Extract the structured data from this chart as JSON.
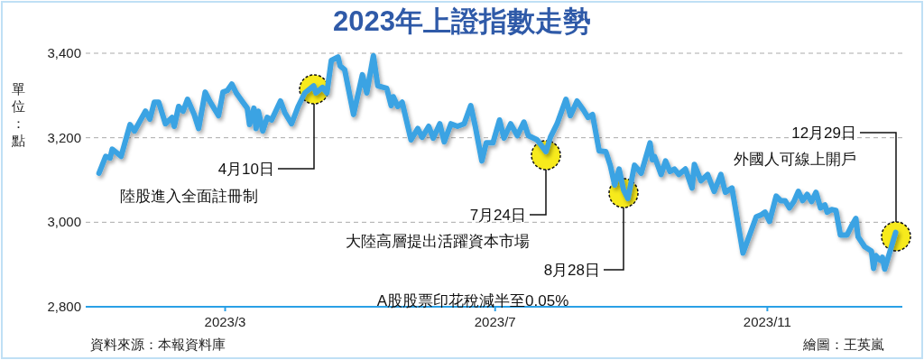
{
  "chart_data": {
    "type": "line",
    "title": "2023年上證指數走勢",
    "ylabel": "單位：點",
    "x": [
      "2023-01-03",
      "2023-01-06",
      "2023-01-08",
      "2023-01-09",
      "2023-01-13",
      "2023-01-17",
      "2023-01-19",
      "2023-01-24",
      "2023-01-26",
      "2023-01-28",
      "2023-01-30",
      "2023-02-02",
      "2023-02-05",
      "2023-02-06",
      "2023-02-08",
      "2023-02-10",
      "2023-02-12",
      "2023-02-15",
      "2023-02-17",
      "2023-02-20",
      "2023-02-22",
      "2023-02-26",
      "2023-02-28",
      "2023-03-02",
      "2023-03-04",
      "2023-03-06",
      "2023-03-09",
      "2023-03-11",
      "2023-03-12",
      "2023-03-14",
      "2023-03-15",
      "2023-03-16",
      "2023-03-18",
      "2023-03-20",
      "2023-03-22",
      "2023-03-26",
      "2023-03-28",
      "2023-03-31",
      "2023-04-03",
      "2023-04-06",
      "2023-04-10",
      "2023-04-11",
      "2023-04-14",
      "2023-04-16",
      "2023-04-18",
      "2023-04-21",
      "2023-04-22",
      "2023-04-24",
      "2023-04-28",
      "2023-05-02",
      "2023-05-04",
      "2023-05-07",
      "2023-05-09",
      "2023-05-13",
      "2023-05-15",
      "2023-05-16",
      "2023-05-18",
      "2023-05-20",
      "2023-05-24",
      "2023-05-27",
      "2023-05-29",
      "2023-06-01",
      "2023-06-03",
      "2023-06-06",
      "2023-06-08",
      "2023-06-11",
      "2023-06-14",
      "2023-06-17",
      "2023-06-20",
      "2023-06-22",
      "2023-06-25",
      "2023-06-27",
      "2023-06-30",
      "2023-07-03",
      "2023-07-05",
      "2023-07-08",
      "2023-07-11",
      "2023-07-14",
      "2023-07-16",
      "2023-07-20",
      "2023-07-24",
      "2023-07-26",
      "2023-07-29",
      "2023-08-02",
      "2023-08-04",
      "2023-08-07",
      "2023-08-10",
      "2023-08-12",
      "2023-08-14",
      "2023-08-17",
      "2023-08-20",
      "2023-08-22",
      "2023-08-24",
      "2023-08-26",
      "2023-08-28",
      "2023-08-30",
      "2023-09-02",
      "2023-09-05",
      "2023-09-09",
      "2023-09-10",
      "2023-09-11",
      "2023-09-14",
      "2023-09-16",
      "2023-09-18",
      "2023-09-20",
      "2023-09-22",
      "2023-09-25",
      "2023-09-28",
      "2023-09-29",
      "2023-10-02",
      "2023-10-05",
      "2023-10-08",
      "2023-10-11",
      "2023-10-13",
      "2023-10-16",
      "2023-10-21",
      "2023-10-27",
      "2023-10-29",
      "2023-10-31",
      "2023-11-02",
      "2023-11-05",
      "2023-11-07",
      "2023-11-09",
      "2023-11-11",
      "2023-11-13",
      "2023-11-15",
      "2023-11-17",
      "2023-11-19",
      "2023-11-21",
      "2023-11-23",
      "2023-11-25",
      "2023-11-27",
      "2023-11-28",
      "2023-11-30",
      "2023-12-02",
      "2023-12-04",
      "2023-12-07",
      "2023-12-09",
      "2023-12-11",
      "2023-12-12",
      "2023-12-15",
      "2023-12-18",
      "2023-12-19",
      "2023-12-20",
      "2023-12-22",
      "2023-12-23",
      "2023-12-24",
      "2023-12-29"
    ],
    "series": [
      {
        "color": "#3ba3e3",
        "values": [
          3116,
          3156,
          3152,
          3173,
          3156,
          3231,
          3216,
          3263,
          3244,
          3284,
          3284,
          3233,
          3248,
          3227,
          3274,
          3263,
          3291,
          3255,
          3222,
          3308,
          3287,
          3252,
          3308,
          3312,
          3327,
          3306,
          3284,
          3270,
          3231,
          3270,
          3222,
          3263,
          3216,
          3248,
          3242,
          3287,
          3259,
          3233,
          3274,
          3306,
          3323,
          3306,
          3319,
          3306,
          3383,
          3391,
          3370,
          3361,
          3255,
          3349,
          3306,
          3394,
          3323,
          3317,
          3276,
          3297,
          3274,
          3284,
          3195,
          3222,
          3201,
          3227,
          3199,
          3233,
          3190,
          3233,
          3227,
          3233,
          3276,
          3227,
          3145,
          3188,
          3188,
          3242,
          3199,
          3233,
          3205,
          3237,
          3205,
          3195,
          3167,
          3201,
          3233,
          3291,
          3252,
          3287,
          3265,
          3248,
          3255,
          3169,
          3167,
          3135,
          3088,
          3126,
          3077,
          3056,
          3135,
          3116,
          3188,
          3148,
          3156,
          3113,
          3145,
          3120,
          3126,
          3113,
          3126,
          3081,
          3137,
          3098,
          3113,
          3073,
          3113,
          3071,
          3081,
          2927,
          3013,
          3017,
          3024,
          3002,
          3062,
          3051,
          3051,
          3034,
          3049,
          3073,
          3051,
          3066,
          3049,
          3071,
          3034,
          3041,
          3024,
          3030,
          3028,
          2970,
          2970,
          2991,
          3009,
          2966,
          2942,
          2932,
          2891,
          2921,
          2910,
          2917,
          2889,
          2976
        ]
      }
    ],
    "xlim": [
      "2022-12-28",
      "2024-01-01"
    ],
    "xticks": [
      {
        "value": "2023-03-01",
        "label": "2023/3"
      },
      {
        "value": "2023-07-01",
        "label": "2023/7"
      },
      {
        "value": "2023-11-01",
        "label": "2023/11"
      }
    ],
    "ylim": [
      2800,
      3400
    ],
    "yticks": [
      {
        "value": 2800,
        "label": "2,800"
      },
      {
        "value": 3000,
        "label": "3,000"
      },
      {
        "value": 3200,
        "label": "3,200"
      },
      {
        "value": 3400,
        "label": "3,400"
      }
    ],
    "grid": "y",
    "marker": "none",
    "line_style": "solid",
    "annotations": [
      "4月10日",
      "7月24日",
      "8月28日",
      "12月29日",
      "陸股進入全面註冊制",
      "大陸高層提出活躍資本市場",
      "A股股票印花稅減半至0.05%",
      "外國人可線上開戶",
      "資料來源：本報資料庫",
      "繪圖：王英嵐"
    ]
  }
}
